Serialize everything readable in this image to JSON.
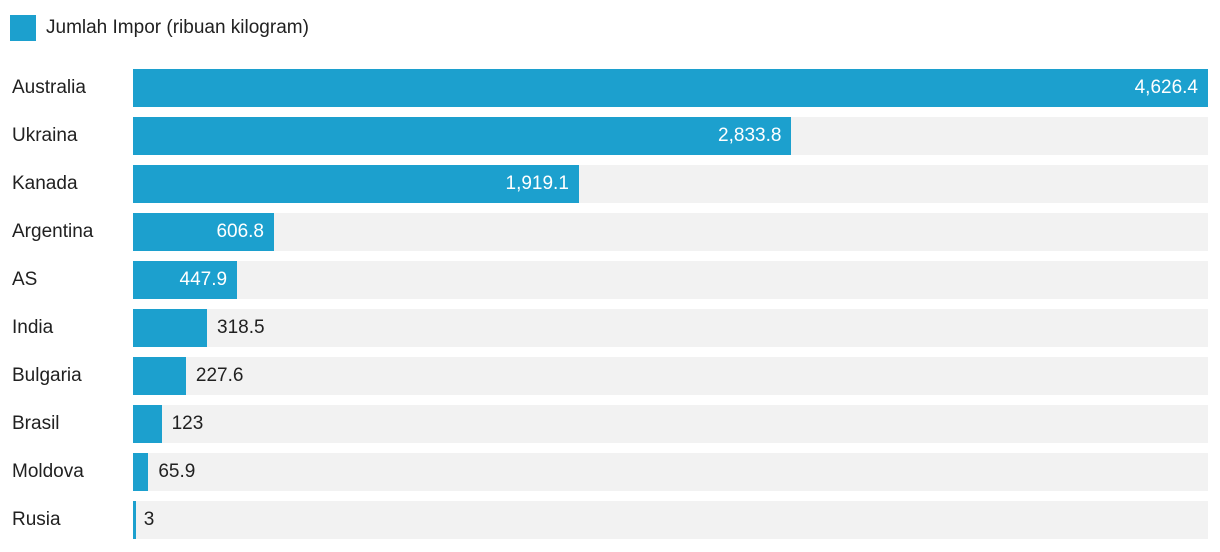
{
  "colors": {
    "bar": "#1CA0CE",
    "track": "#F2F2F2",
    "text_dark": "#212121",
    "value_inside": "#FFFFFF"
  },
  "legend": {
    "label": "Jumlah Impor (ribuan kilogram)"
  },
  "chart_data": {
    "type": "bar",
    "orientation": "horizontal",
    "title": "Jumlah Impor (ribuan kilogram)",
    "legend_position": "top-left",
    "grid": false,
    "categories": [
      "Australia",
      "Ukraina",
      "Kanada",
      "Argentina",
      "AS",
      "India",
      "Bulgaria",
      "Brasil",
      "Moldova",
      "Rusia"
    ],
    "values": [
      4626.4,
      2833.8,
      1919.1,
      606.8,
      447.9,
      318.5,
      227.6,
      123,
      65.9,
      3
    ],
    "value_labels": [
      "4,626.4",
      "2,833.8",
      "1,919.1",
      "606.8",
      "447.9",
      "318.5",
      "227.6",
      "123",
      "65.9",
      "3"
    ],
    "xlabel": "",
    "ylabel": "",
    "xlim": [
      0,
      4626.4
    ]
  }
}
